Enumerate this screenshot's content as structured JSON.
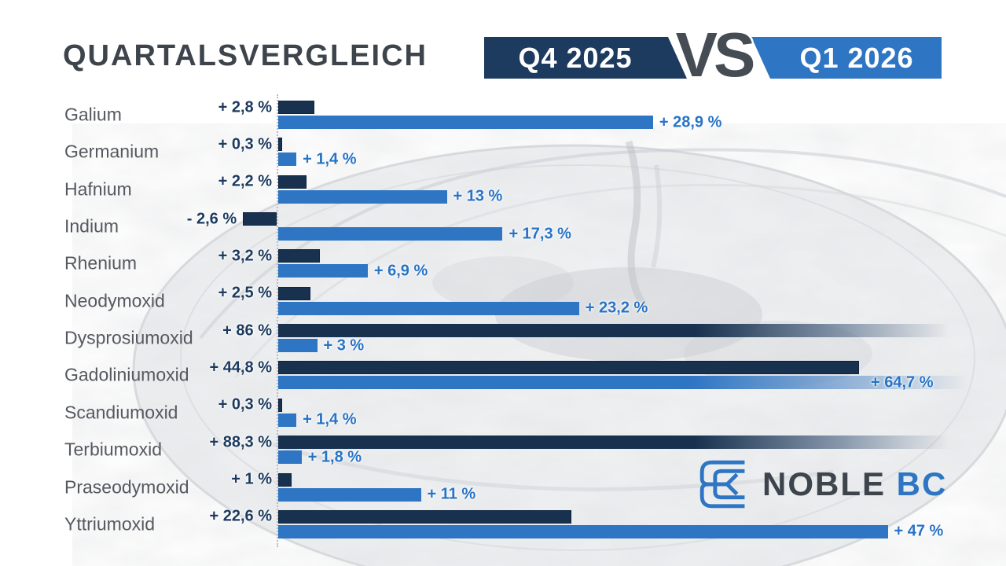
{
  "header": {
    "title": "QUARTALSVERGLEICH",
    "badge": {
      "left_label": "Q4 2025",
      "vs_label": "VS",
      "right_label": "Q1 2026"
    }
  },
  "colors": {
    "navy": "#17314f",
    "blue": "#2e75c4",
    "title_gray": "#3e444c",
    "category_gray": "#55595f",
    "vs_gray": "#454c54"
  },
  "chart_data": {
    "type": "bar",
    "orientation": "horizontal",
    "unit": "%",
    "title": "Quartalsvergleich Q4 2025 vs Q1 2026",
    "legend_position": "top",
    "grid": false,
    "axis_baseline_percent": 0,
    "visible_axis_max_percent": 52,
    "overflow_rendering": "bars beyond ~52% fade out at right edge",
    "series": [
      {
        "name": "Q4 2025",
        "color": "#17314f"
      },
      {
        "name": "Q1 2026",
        "color": "#2e75c4"
      }
    ],
    "categories": [
      "Galium",
      "Germanium",
      "Hafnium",
      "Indium",
      "Rhenium",
      "Neodymoxid",
      "Dysprosiumoxid",
      "Gadoliniumoxid",
      "Scandiumoxid",
      "Terbiumoxid",
      "Praseodymoxid",
      "Yttriumoxid"
    ],
    "rows": [
      {
        "label": "Galium",
        "q4": 2.8,
        "q4_label": "+ 2,8 %",
        "q1": 28.9,
        "q1_label": "+ 28,9 %"
      },
      {
        "label": "Germanium",
        "q4": 0.3,
        "q4_label": "+ 0,3 %",
        "q1": 1.4,
        "q1_label": "+ 1,4 %"
      },
      {
        "label": "Hafnium",
        "q4": 2.2,
        "q4_label": "+ 2,2 %",
        "q1": 13,
        "q1_label": "+ 13 %"
      },
      {
        "label": "Indium",
        "q4": -2.6,
        "q4_label": "- 2,6 %",
        "q1": 17.3,
        "q1_label": "+ 17,3 %"
      },
      {
        "label": "Rhenium",
        "q4": 3.2,
        "q4_label": "+ 3,2 %",
        "q1": 6.9,
        "q1_label": "+ 6,9 %"
      },
      {
        "label": "Neodymoxid",
        "q4": 2.5,
        "q4_label": "+ 2,5 %",
        "q1": 23.2,
        "q1_label": "+ 23,2 %"
      },
      {
        "label": "Dysprosiumoxid",
        "q4": 86,
        "q4_label": "+ 86 %",
        "q1": 3,
        "q1_label": "+ 3 %"
      },
      {
        "label": "Gadoliniumoxid",
        "q4": 44.8,
        "q4_label": "+ 44,8 %",
        "q1": 64.7,
        "q1_label": "+ 64,7 %"
      },
      {
        "label": "Scandiumoxid",
        "q4": 0.3,
        "q4_label": "+ 0,3 %",
        "q1": 1.4,
        "q1_label": "+ 1,4 %"
      },
      {
        "label": "Terbiumoxid",
        "q4": 88.3,
        "q4_label": "+ 88,3 %",
        "q1": 1.8,
        "q1_label": "+ 1,8 %"
      },
      {
        "label": "Praseodymoxid",
        "q4": 1,
        "q4_label": "+ 1 %",
        "q1": 11,
        "q1_label": "+ 11 %"
      },
      {
        "label": "Yttriumoxid",
        "q4": 22.6,
        "q4_label": "+ 22,6 %",
        "q1": 47,
        "q1_label": "+ 47 %"
      }
    ]
  },
  "logo": {
    "text_primary": "NOBLE",
    "text_accent": "BC"
  }
}
